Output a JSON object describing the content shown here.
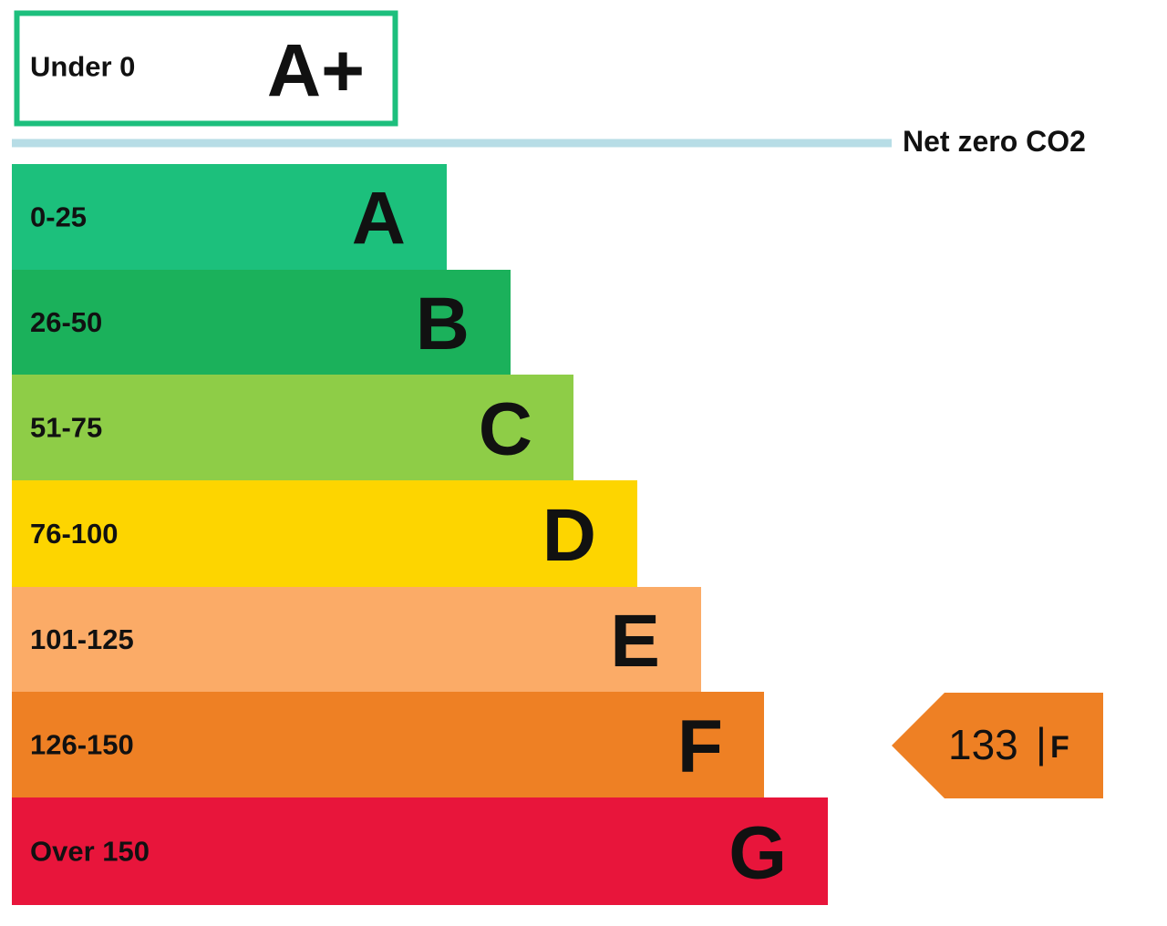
{
  "top_band": {
    "range": "Under 0",
    "grade": "A+",
    "color": "#1dbf7d"
  },
  "net_zero_label": "Net zero CO2",
  "bands": [
    {
      "range": "0-25",
      "grade": "A",
      "color": "#1cc07c"
    },
    {
      "range": "26-50",
      "grade": "B",
      "color": "#1bb15b"
    },
    {
      "range": "51-75",
      "grade": "C",
      "color": "#8ecd47"
    },
    {
      "range": "76-100",
      "grade": "D",
      "color": "#fdd500"
    },
    {
      "range": "101-125",
      "grade": "E",
      "color": "#fbab67"
    },
    {
      "range": "126-150",
      "grade": "F",
      "color": "#ee8024"
    },
    {
      "range": "Over 150",
      "grade": "G",
      "color": "#e8153b"
    }
  ],
  "indicator": {
    "value": "133",
    "separator": "|",
    "grade": "F",
    "color": "#ee8024"
  }
}
